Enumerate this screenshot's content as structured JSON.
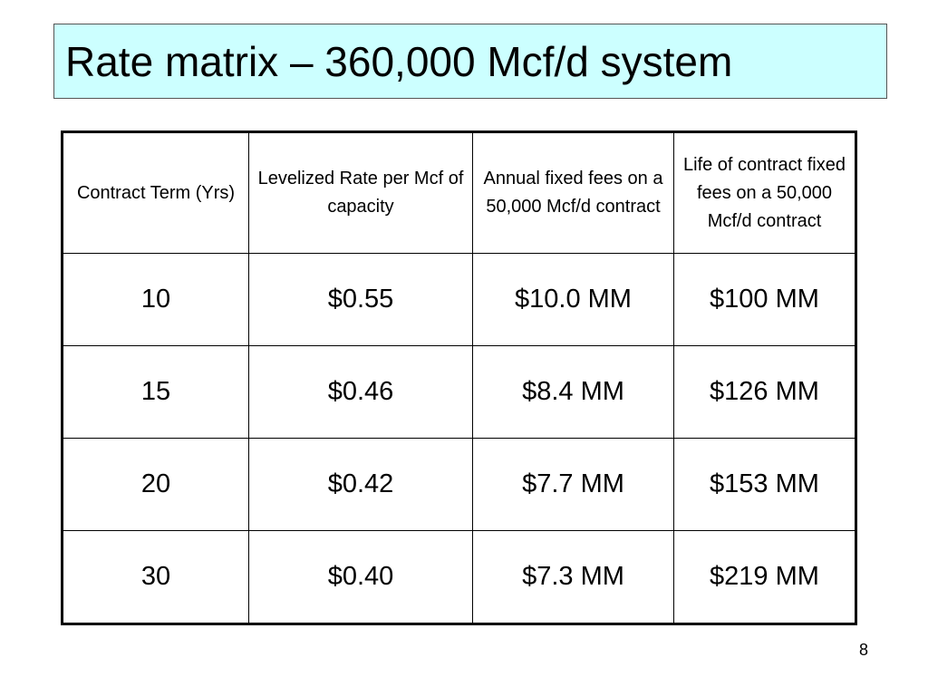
{
  "slide": {
    "title": "Rate matrix – 360,000 Mcf/d system",
    "page_number": "8",
    "colors": {
      "title_background": "#ccffff",
      "title_border": "#555555",
      "table_border": "#000000"
    }
  },
  "table": {
    "headers": [
      "Contract Term (Yrs)",
      "Levelized Rate per Mcf of capacity",
      "Annual fixed fees on a 50,000 Mcf/d contract",
      "Life of contract fixed fees on a 50,000 Mcf/d contract"
    ],
    "rows": [
      [
        "10",
        "$0.55",
        "$10.0 MM",
        "$100 MM"
      ],
      [
        "15",
        "$0.46",
        "$8.4 MM",
        "$126 MM"
      ],
      [
        "20",
        "$0.42",
        "$7.7 MM",
        "$153 MM"
      ],
      [
        "30",
        "$0.40",
        "$7.3 MM",
        "$219 MM"
      ]
    ]
  }
}
